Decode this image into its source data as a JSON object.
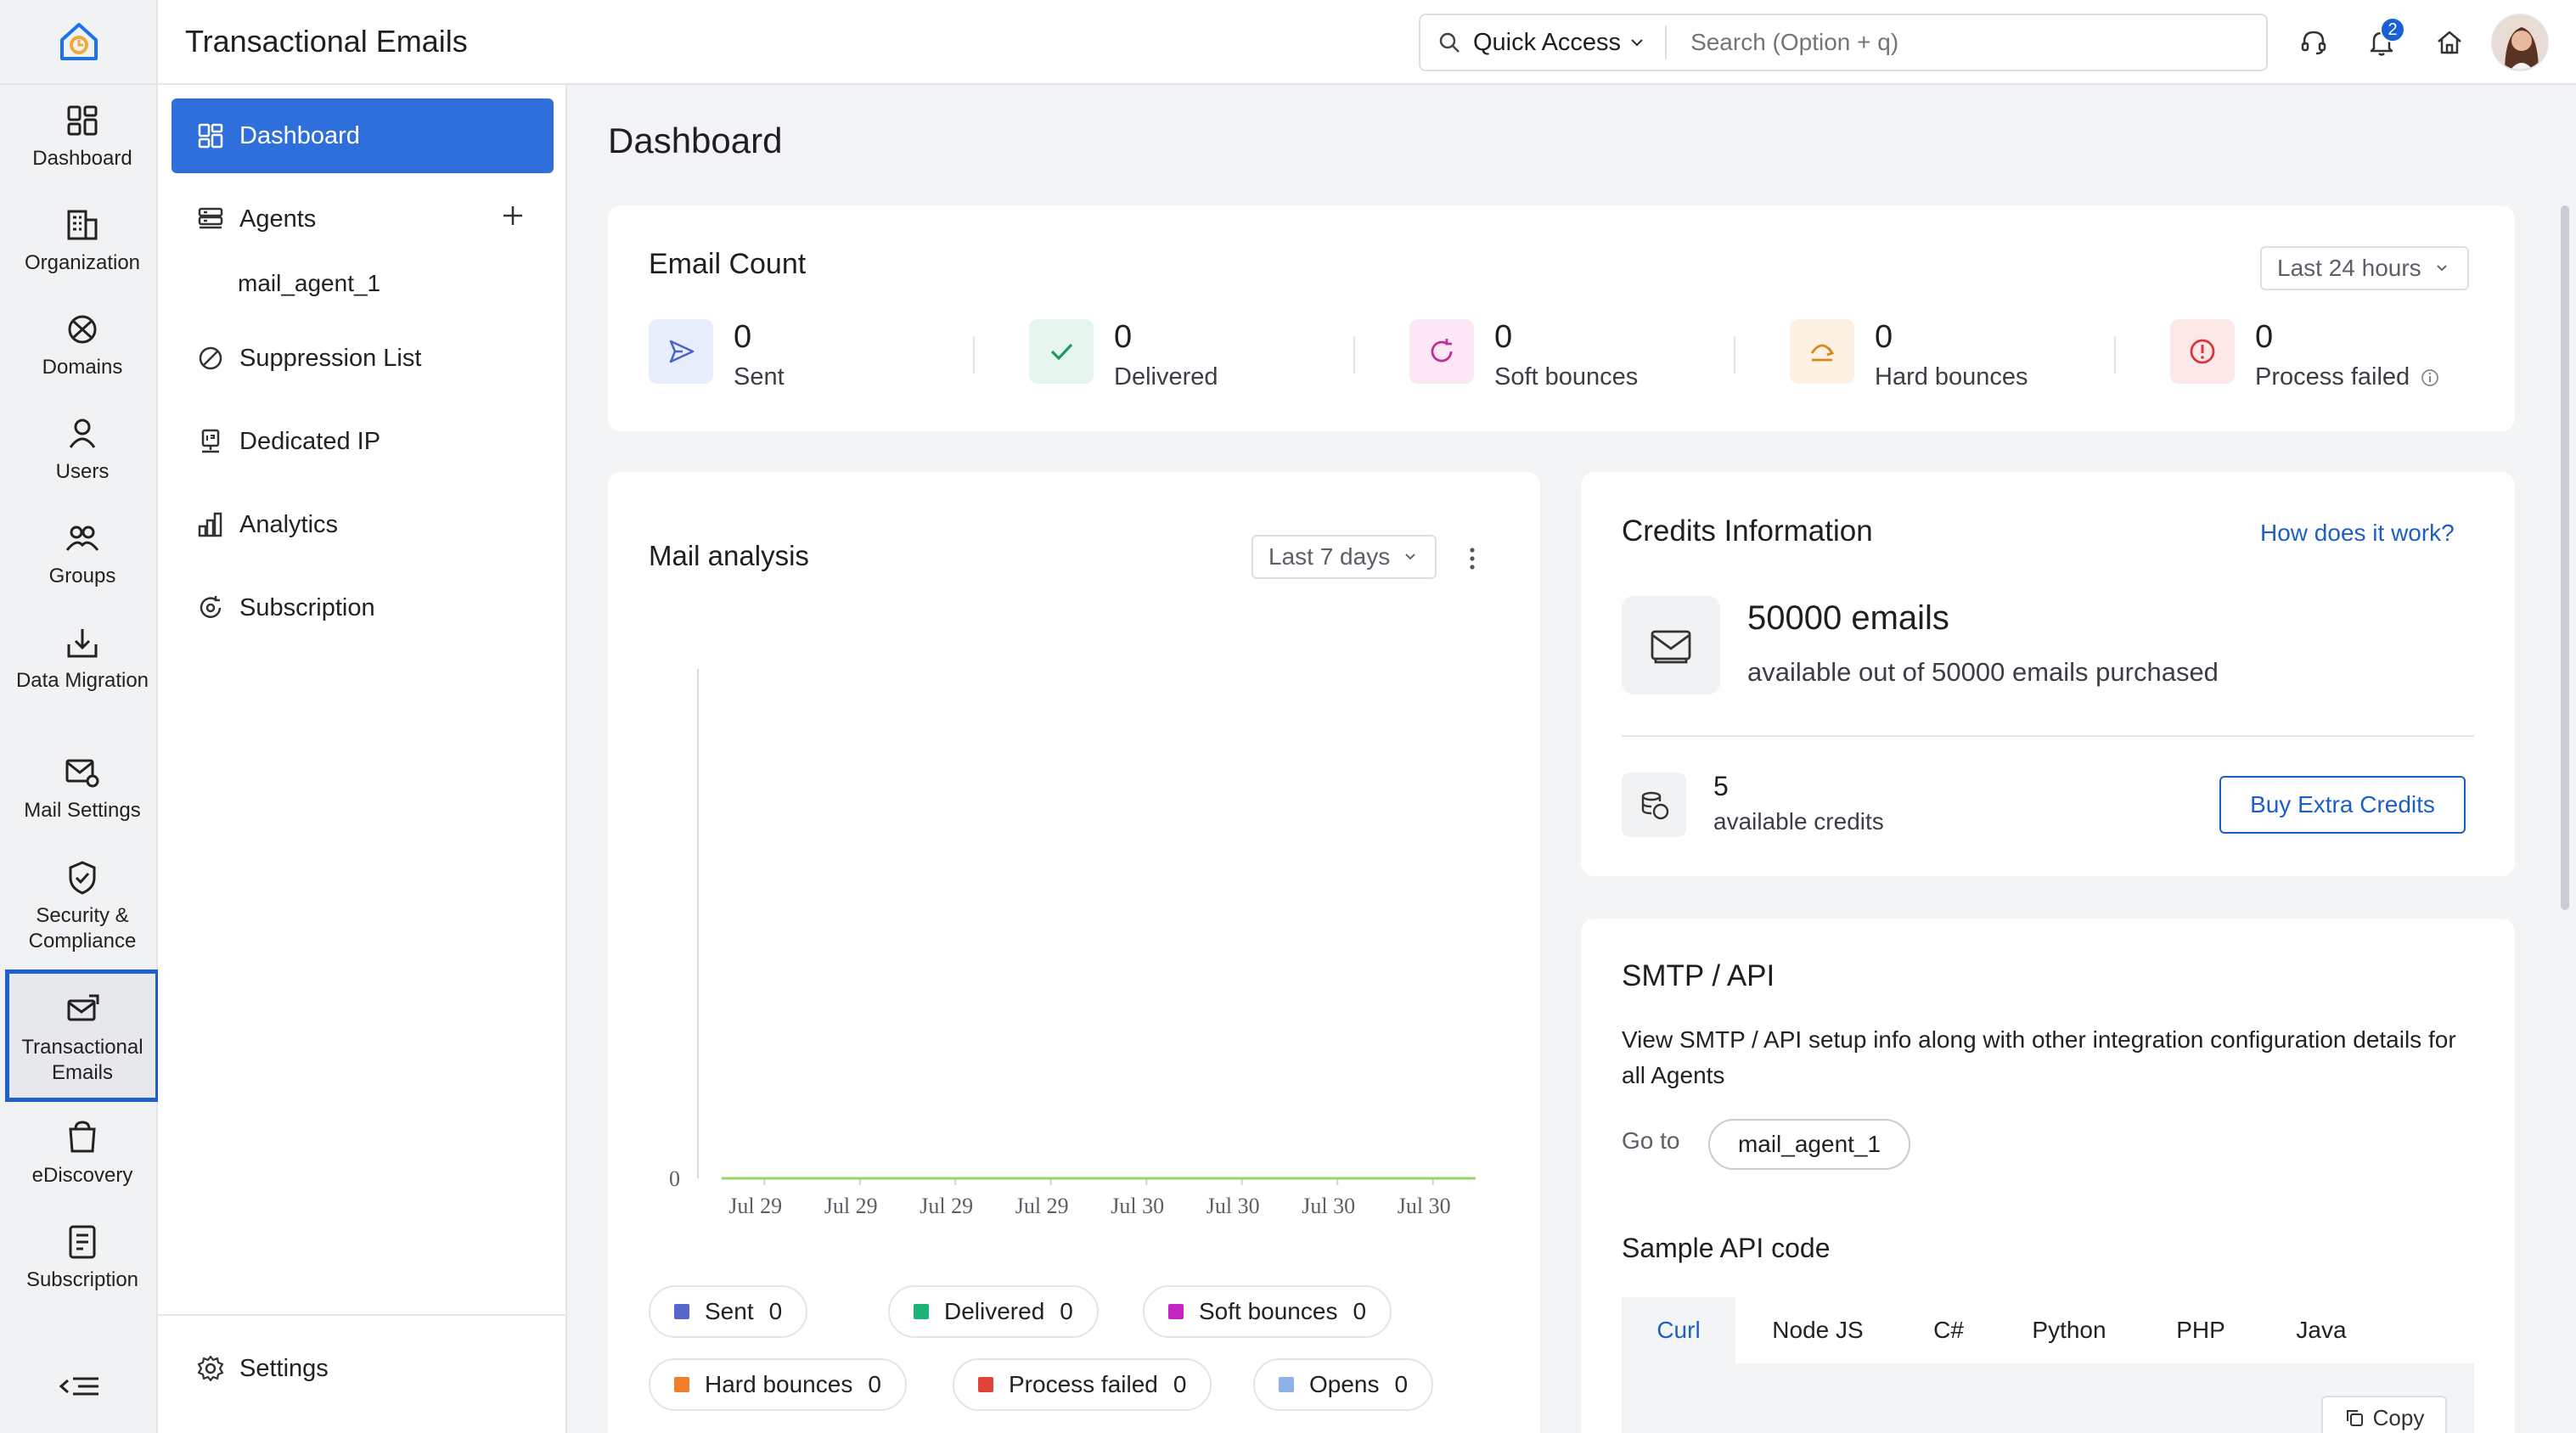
{
  "app": {
    "title": "Transactional Emails"
  },
  "rail": {
    "items": [
      {
        "label": "Dashboard",
        "icon": "dashboard-icon"
      },
      {
        "label": "Organization",
        "icon": "organization-icon"
      },
      {
        "label": "Domains",
        "icon": "domains-icon"
      },
      {
        "label": "Users",
        "icon": "users-icon"
      },
      {
        "label": "Groups",
        "icon": "groups-icon"
      },
      {
        "label": "Data Migration",
        "icon": "data-migration-icon"
      },
      {
        "label": "Mail Settings",
        "icon": "mail-settings-icon"
      },
      {
        "label": "Security & Compliance",
        "icon": "security-icon"
      },
      {
        "label": "Transactional Emails",
        "icon": "transactional-emails-icon",
        "active": true
      },
      {
        "label": "eDiscovery",
        "icon": "ediscovery-icon"
      },
      {
        "label": "Subscription",
        "icon": "subscription-icon"
      }
    ]
  },
  "topbar": {
    "quick_access": "Quick Access",
    "search_placeholder": "Search (Option + q)",
    "notification_count": "2"
  },
  "subnav": {
    "dashboard": "Dashboard",
    "agents": "Agents",
    "agent_sub": "mail_agent_1",
    "suppression": "Suppression List",
    "dedicated_ip": "Dedicated IP",
    "analytics": "Analytics",
    "subscription": "Subscription",
    "settings": "Settings"
  },
  "page": {
    "title": "Dashboard"
  },
  "email_count": {
    "title": "Email Count",
    "range": "Last 24 hours",
    "stats": [
      {
        "value": "0",
        "label": "Sent"
      },
      {
        "value": "0",
        "label": "Delivered"
      },
      {
        "value": "0",
        "label": "Soft bounces"
      },
      {
        "value": "0",
        "label": "Hard bounces"
      },
      {
        "value": "0",
        "label": "Process failed"
      }
    ]
  },
  "mail_analysis": {
    "title": "Mail analysis",
    "range": "Last 7 days",
    "legend": [
      {
        "label": "Sent",
        "count": "0",
        "color": "#5566cc"
      },
      {
        "label": "Delivered",
        "count": "0",
        "color": "#1db374"
      },
      {
        "label": "Soft bounces",
        "count": "0",
        "color": "#c424c4"
      },
      {
        "label": "Hard bounces",
        "count": "0",
        "color": "#f07f2c"
      },
      {
        "label": "Process failed",
        "count": "0",
        "color": "#e0433a"
      },
      {
        "label": "Opens",
        "count": "0",
        "color": "#8fb0e8"
      }
    ]
  },
  "chart_data": {
    "type": "line",
    "x": [
      "Jul 29",
      "Jul 29",
      "Jul 29",
      "Jul 29",
      "Jul 30",
      "Jul 30",
      "Jul 30",
      "Jul 30"
    ],
    "series": [
      {
        "name": "Sent",
        "values": [
          0,
          0,
          0,
          0,
          0,
          0,
          0,
          0
        ]
      },
      {
        "name": "Delivered",
        "values": [
          0,
          0,
          0,
          0,
          0,
          0,
          0,
          0
        ]
      },
      {
        "name": "Soft bounces",
        "values": [
          0,
          0,
          0,
          0,
          0,
          0,
          0,
          0
        ]
      },
      {
        "name": "Hard bounces",
        "values": [
          0,
          0,
          0,
          0,
          0,
          0,
          0,
          0
        ]
      },
      {
        "name": "Process failed",
        "values": [
          0,
          0,
          0,
          0,
          0,
          0,
          0,
          0
        ]
      },
      {
        "name": "Opens",
        "values": [
          0,
          0,
          0,
          0,
          0,
          0,
          0,
          0
        ]
      }
    ],
    "y_tick_labels": [
      "0"
    ],
    "line_color": "#9bd36b"
  },
  "credits": {
    "title": "Credits Information",
    "link": "How does it work?",
    "emails_headline": "50000 emails",
    "emails_sub": "available out of 50000 emails purchased",
    "credits_value": "5",
    "credits_label": "available credits",
    "buy_button": "Buy Extra Credits"
  },
  "smtp": {
    "title": "SMTP / API",
    "description": "View SMTP / API setup info along with other integration configuration details for all Agents",
    "goto_label": "Go to",
    "agent_pill": "mail_agent_1",
    "sample_title": "Sample API code",
    "tabs": [
      "Curl",
      "Node JS",
      "C#",
      "Python",
      "PHP",
      "Java"
    ],
    "copy_label": "Copy"
  }
}
